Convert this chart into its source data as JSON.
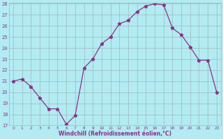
{
  "x": [
    0,
    1,
    2,
    3,
    4,
    5,
    6,
    7,
    8,
    9,
    10,
    11,
    12,
    13,
    14,
    15,
    16,
    17,
    18,
    19,
    20,
    21,
    22,
    23
  ],
  "y": [
    21.0,
    21.2,
    20.5,
    19.5,
    18.5,
    18.5,
    17.1,
    17.9,
    22.2,
    23.0,
    24.4,
    25.0,
    26.2,
    26.5,
    27.3,
    27.8,
    28.0,
    27.9,
    25.8,
    25.2,
    24.1,
    22.9,
    22.9,
    20.0
  ],
  "line_color": "#883388",
  "bg_color": "#b2ebf2",
  "grid_color": "#9db8ba",
  "xlabel": "Windchill (Refroidissement éolien,°C)",
  "ylim": [
    17,
    28
  ],
  "xlim": [
    -0.5,
    23.5
  ],
  "yticks": [
    17,
    18,
    19,
    20,
    21,
    22,
    23,
    24,
    25,
    26,
    27,
    28
  ],
  "xticks": [
    0,
    1,
    2,
    3,
    4,
    5,
    6,
    7,
    8,
    9,
    10,
    11,
    12,
    13,
    14,
    15,
    16,
    17,
    18,
    19,
    20,
    21,
    22,
    23
  ]
}
